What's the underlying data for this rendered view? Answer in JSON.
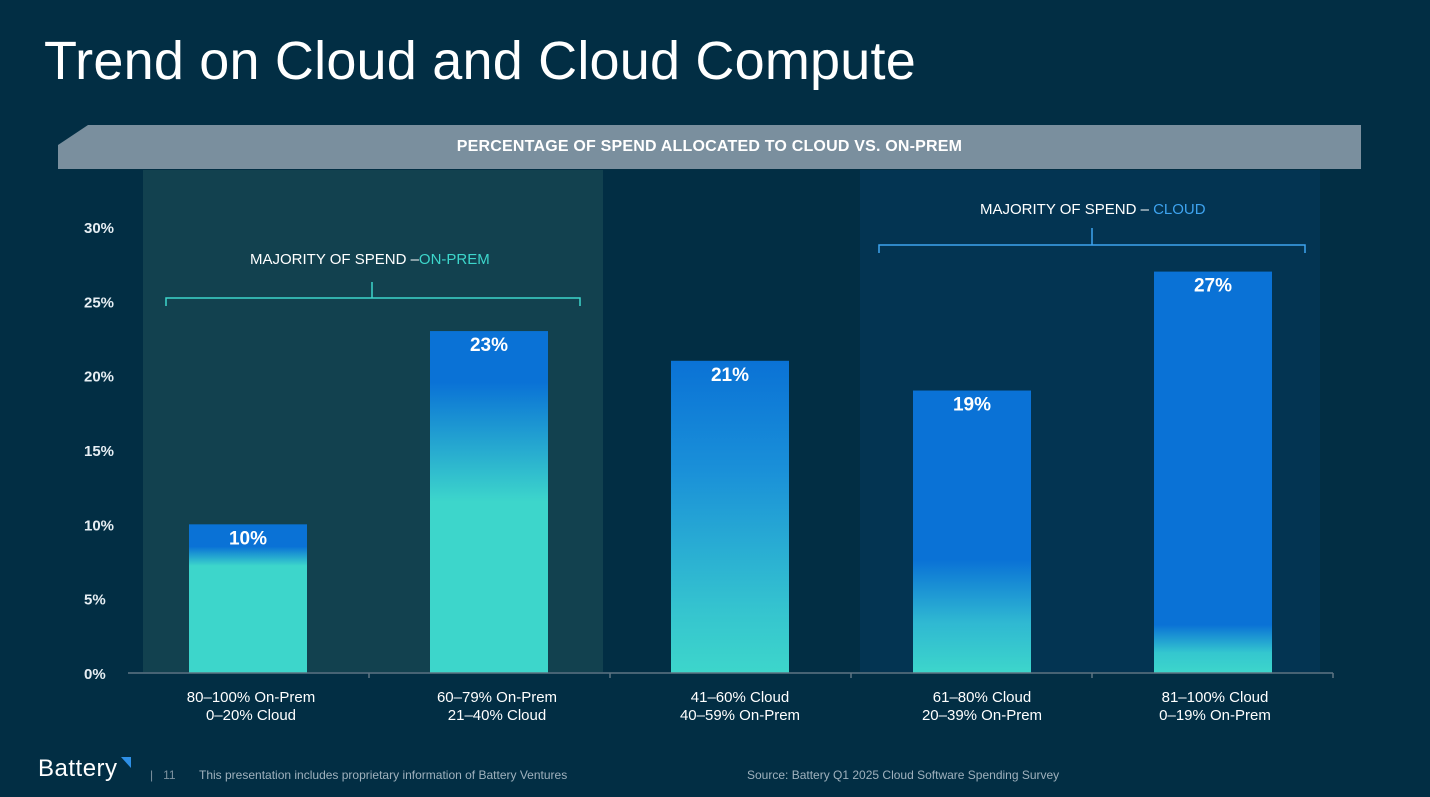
{
  "title": "Trend on Cloud and Cloud Compute",
  "banner": "PERCENTAGE OF SPEND ALLOCATED TO CLOUD VS. ON-PREM",
  "annotations": {
    "onprem_prefix": "MAJORITY OF SPEND –",
    "onprem_highlight": "ON-PREM",
    "cloud_prefix": "MAJORITY OF SPEND – ",
    "cloud_highlight": "CLOUD"
  },
  "chart_data": {
    "type": "bar",
    "categories": [
      [
        "80–100% On-Prem",
        "0–20% Cloud"
      ],
      [
        "60–79% On-Prem",
        "21–40% Cloud"
      ],
      [
        "41–60% Cloud",
        "40–59% On-Prem"
      ],
      [
        "61–80% Cloud",
        "20–39% On-Prem"
      ],
      [
        "81–100% Cloud",
        "0–19% On-Prem"
      ]
    ],
    "values": [
      10,
      23,
      21,
      19,
      27
    ],
    "data_labels": [
      "10%",
      "23%",
      "21%",
      "19%",
      "27%"
    ],
    "yticks": [
      "0%",
      "5%",
      "10%",
      "15%",
      "20%",
      "25%",
      "30%"
    ],
    "ylim": [
      0,
      30
    ],
    "grid": false,
    "colors": {
      "teal": "#3dd6cb",
      "blue": "#0a72d6"
    }
  },
  "footer": {
    "brand": "Battery",
    "page": "11",
    "disclaimer": "This presentation includes proprietary information of Battery Ventures",
    "source": "Source: Battery Q1 2025 Cloud Software Spending Survey"
  }
}
